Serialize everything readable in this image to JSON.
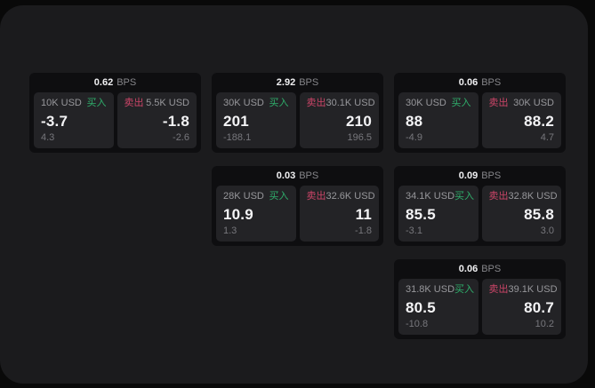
{
  "page": {
    "bps_label": "BPS",
    "buy_label": "买入",
    "sell_label": "卖出",
    "colors": {
      "outer_bg": "#090909",
      "panel_bg": "#1b1b1d",
      "card_bg": "#0e0e10",
      "tile_bg": "#232326",
      "buy_green": "#2fae6b",
      "sell_red": "#cc4568",
      "value_white": "#f4f4f6",
      "label_gray": "#97979b",
      "delta_gray": "#77777c"
    }
  },
  "cards": [
    {
      "bps": "0.62",
      "row": 1,
      "col": 1,
      "buy": {
        "notional": "10K USD",
        "price": "-3.7",
        "delta": "4.3"
      },
      "sell": {
        "notional": "5.5K USD",
        "price": "-1.8",
        "delta": "-2.6"
      }
    },
    {
      "bps": "2.92",
      "row": 1,
      "col": 2,
      "buy": {
        "notional": "30K USD",
        "price": "201",
        "delta": "-188.1"
      },
      "sell": {
        "notional": "30.1K USD",
        "price": "210",
        "delta": "196.5"
      }
    },
    {
      "bps": "0.06",
      "row": 1,
      "col": 3,
      "buy": {
        "notional": "30K USD",
        "price": "88",
        "delta": "-4.9"
      },
      "sell": {
        "notional": "30K USD",
        "price": "88.2",
        "delta": "4.7"
      }
    },
    {
      "bps": "0.03",
      "row": 2,
      "col": 2,
      "buy": {
        "notional": "28K USD",
        "price": "10.9",
        "delta": "1.3"
      },
      "sell": {
        "notional": "32.6K USD",
        "price": "11",
        "delta": "-1.8"
      }
    },
    {
      "bps": "0.09",
      "row": 2,
      "col": 3,
      "buy": {
        "notional": "34.1K USD",
        "price": "85.5",
        "delta": "-3.1"
      },
      "sell": {
        "notional": "32.8K USD",
        "price": "85.8",
        "delta": "3.0"
      }
    },
    {
      "bps": "0.06",
      "row": 3,
      "col": 3,
      "buy": {
        "notional": "31.8K USD",
        "price": "80.5",
        "delta": "-10.8"
      },
      "sell": {
        "notional": "39.1K USD",
        "price": "80.7",
        "delta": "10.2"
      }
    }
  ]
}
